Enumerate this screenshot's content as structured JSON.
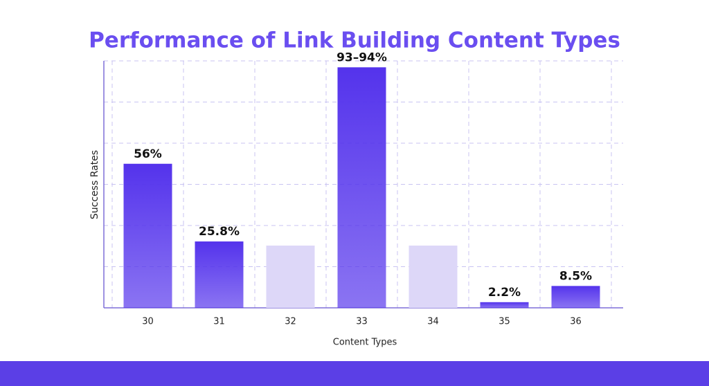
{
  "chart_data": {
    "type": "bar",
    "title": "Performance of Link Building Content Types",
    "x_label": "Content Types",
    "y_label": "Success Rates",
    "categories": [
      "30",
      "31",
      "32",
      "33",
      "34",
      "35",
      "36"
    ],
    "values": [
      56,
      25.8,
      null,
      93.5,
      null,
      2.2,
      8.5
    ],
    "value_labels": [
      "56%",
      "25.8%",
      null,
      "93–94%",
      null,
      "2.2%",
      "8.5%"
    ],
    "color": "#5433ec",
    "ylim": [
      0,
      96
    ],
    "yticks": [
      0,
      16,
      32,
      48,
      64,
      80,
      96
    ],
    "grid": true
  }
}
